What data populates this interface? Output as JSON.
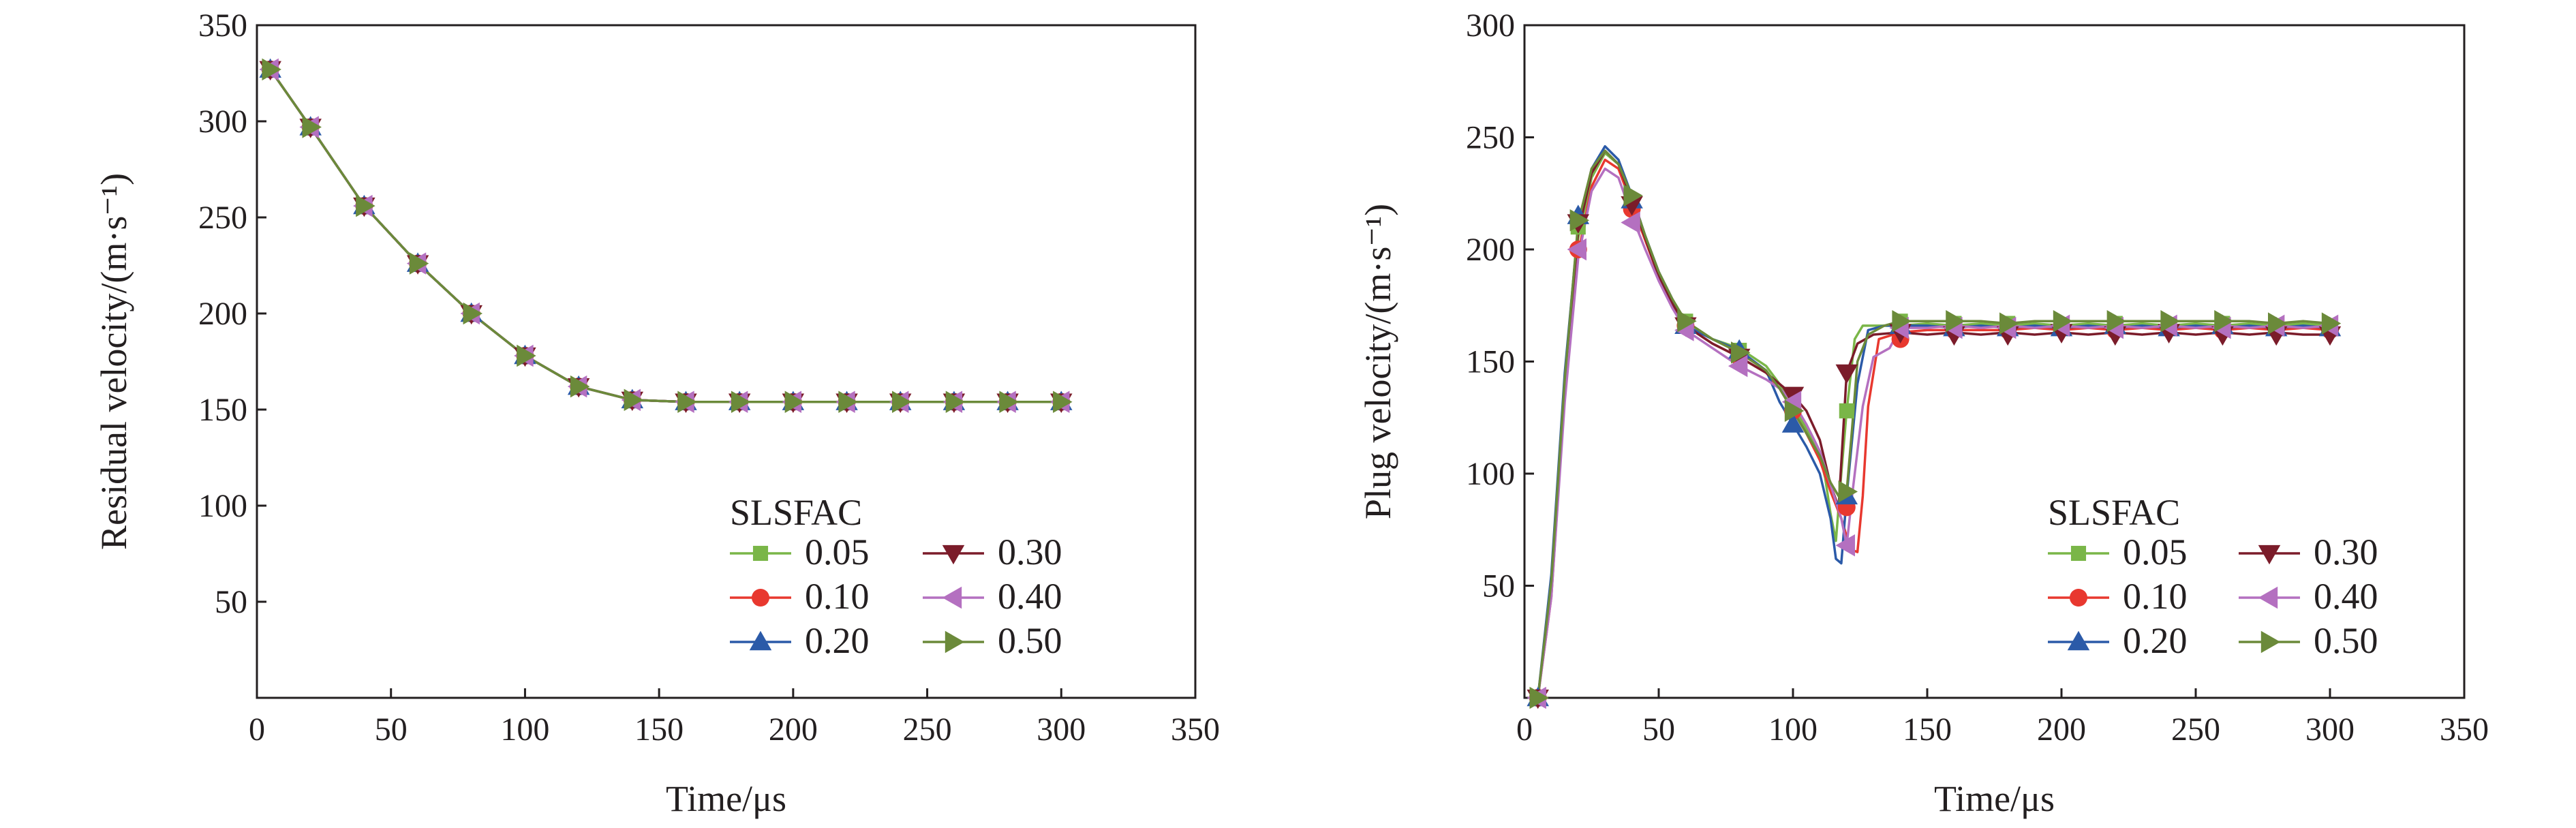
{
  "chart_data": [
    {
      "type": "line",
      "xlabel": "Time/μs",
      "ylabel": "Residual velocity/(m·s⁻¹)",
      "xlim": [
        0,
        350
      ],
      "ylim": [
        0,
        350
      ],
      "xticks": [
        0,
        50,
        100,
        150,
        200,
        250,
        300,
        350
      ],
      "yticks": [
        50,
        100,
        150,
        200,
        250,
        300,
        350
      ],
      "grid": false,
      "legend": {
        "title": "SLSFAC",
        "placement": "bottom-right"
      },
      "series": [
        {
          "name": "0.05",
          "color": "#7ab648",
          "marker": "square",
          "x": [
            5,
            20,
            40,
            60,
            80,
            100,
            120,
            140,
            160,
            180,
            200,
            220,
            240,
            260,
            280,
            300
          ],
          "y": [
            327,
            297,
            256,
            226,
            200,
            178,
            162,
            155,
            154,
            154,
            154,
            154,
            154,
            154,
            154,
            154
          ]
        },
        {
          "name": "0.10",
          "color": "#e8382f",
          "marker": "circle",
          "x": [
            5,
            20,
            40,
            60,
            80,
            100,
            120,
            140,
            160,
            180,
            200,
            220,
            240,
            260,
            280,
            300
          ],
          "y": [
            327,
            297,
            256,
            226,
            200,
            178,
            162,
            155,
            154,
            154,
            154,
            154,
            154,
            154,
            154,
            154
          ]
        },
        {
          "name": "0.20",
          "color": "#2b5aa8",
          "marker": "triangle-up",
          "x": [
            5,
            20,
            40,
            60,
            80,
            100,
            120,
            140,
            160,
            180,
            200,
            220,
            240,
            260,
            280,
            300
          ],
          "y": [
            327,
            297,
            256,
            226,
            200,
            178,
            162,
            155,
            154,
            154,
            154,
            154,
            154,
            154,
            154,
            154
          ]
        },
        {
          "name": "0.30",
          "color": "#7b1c2a",
          "marker": "triangle-down",
          "x": [
            5,
            20,
            40,
            60,
            80,
            100,
            120,
            140,
            160,
            180,
            200,
            220,
            240,
            260,
            280,
            300
          ],
          "y": [
            327,
            297,
            256,
            226,
            200,
            178,
            162,
            155,
            154,
            154,
            154,
            154,
            154,
            154,
            154,
            154
          ]
        },
        {
          "name": "0.40",
          "color": "#b470c0",
          "marker": "triangle-left",
          "x": [
            5,
            20,
            40,
            60,
            80,
            100,
            120,
            140,
            160,
            180,
            200,
            220,
            240,
            260,
            280,
            300
          ],
          "y": [
            327,
            297,
            256,
            226,
            200,
            178,
            162,
            155,
            154,
            154,
            154,
            154,
            154,
            154,
            154,
            154
          ]
        },
        {
          "name": "0.50",
          "color": "#6b8a3a",
          "marker": "triangle-right",
          "x": [
            5,
            20,
            40,
            60,
            80,
            100,
            120,
            140,
            160,
            180,
            200,
            220,
            240,
            260,
            280,
            300
          ],
          "y": [
            327,
            297,
            256,
            226,
            200,
            178,
            162,
            155,
            154,
            154,
            154,
            154,
            154,
            154,
            154,
            154
          ]
        }
      ]
    },
    {
      "type": "line",
      "xlabel": "Time/μs",
      "ylabel": "Plug velocity/(m·s⁻¹)",
      "xlim": [
        0,
        350
      ],
      "ylim": [
        0,
        300
      ],
      "xticks": [
        0,
        50,
        100,
        150,
        200,
        250,
        300,
        350
      ],
      "yticks": [
        50,
        100,
        150,
        200,
        250,
        300
      ],
      "grid": false,
      "legend": {
        "title": "SLSFAC",
        "placement": "bottom-right"
      },
      "series": [
        {
          "name": "0.05",
          "color": "#7ab648",
          "marker": "square",
          "x": [
            5,
            10,
            15,
            20,
            25,
            30,
            35,
            40,
            45,
            50,
            55,
            60,
            70,
            80,
            90,
            95,
            100,
            105,
            110,
            112,
            114,
            116,
            118,
            120,
            123,
            126,
            130,
            140,
            150,
            160,
            170,
            180,
            190,
            200,
            210,
            220,
            230,
            240,
            250,
            260,
            270,
            280,
            290,
            300
          ],
          "y": [
            0,
            50,
            140,
            205,
            232,
            243,
            238,
            222,
            205,
            190,
            178,
            168,
            160,
            156,
            148,
            140,
            130,
            120,
            108,
            98,
            82,
            70,
            100,
            128,
            160,
            166,
            166,
            166,
            167,
            166,
            167,
            166,
            167,
            166,
            167,
            166,
            167,
            166,
            167,
            166,
            167,
            166,
            167,
            166
          ],
          "marker_x": [
            5,
            20,
            40,
            60,
            80,
            100,
            120,
            140,
            160,
            180,
            200,
            220,
            240,
            260,
            280,
            300
          ],
          "marker_y": [
            0,
            210,
            220,
            168,
            155,
            130,
            128,
            168,
            167,
            167,
            166,
            167,
            166,
            167,
            166,
            166
          ]
        },
        {
          "name": "0.10",
          "color": "#e8382f",
          "marker": "circle",
          "x": [
            5,
            10,
            15,
            20,
            25,
            30,
            35,
            40,
            45,
            50,
            55,
            60,
            70,
            80,
            90,
            95,
            100,
            105,
            110,
            114,
            118,
            120,
            122,
            124,
            126,
            128,
            132,
            140,
            150,
            160,
            170,
            180,
            190,
            200,
            210,
            220,
            230,
            240,
            250,
            260,
            270,
            280,
            290,
            300
          ],
          "y": [
            0,
            45,
            135,
            198,
            228,
            240,
            236,
            220,
            204,
            188,
            176,
            166,
            158,
            152,
            145,
            138,
            128,
            118,
            106,
            92,
            80,
            72,
            66,
            65,
            90,
            130,
            160,
            163,
            164,
            164,
            164,
            164,
            165,
            164,
            165,
            164,
            165,
            164,
            165,
            164,
            165,
            164,
            165,
            164
          ],
          "marker_x": [
            5,
            20,
            40,
            60,
            80,
            100,
            120,
            140,
            160,
            180,
            200,
            220,
            240,
            260,
            280,
            300
          ],
          "marker_y": [
            0,
            200,
            218,
            166,
            152,
            128,
            85,
            160,
            164,
            164,
            165,
            164,
            165,
            164,
            165,
            164
          ]
        },
        {
          "name": "0.20",
          "color": "#2b5aa8",
          "marker": "triangle-up",
          "x": [
            5,
            10,
            15,
            20,
            25,
            30,
            35,
            40,
            45,
            50,
            55,
            60,
            70,
            80,
            90,
            95,
            100,
            105,
            110,
            114,
            116,
            118,
            120,
            124,
            128,
            134,
            140,
            150,
            160,
            170,
            180,
            190,
            200,
            210,
            220,
            230,
            240,
            250,
            260,
            270,
            280,
            290,
            300
          ],
          "y": [
            0,
            55,
            145,
            210,
            236,
            246,
            240,
            224,
            206,
            190,
            178,
            166,
            160,
            155,
            146,
            132,
            122,
            112,
            100,
            80,
            62,
            60,
            90,
            140,
            164,
            166,
            166,
            166,
            165,
            166,
            165,
            166,
            165,
            166,
            165,
            166,
            165,
            166,
            165,
            166,
            165,
            166,
            165
          ],
          "marker_x": [
            5,
            20,
            40,
            60,
            80,
            100,
            120,
            140,
            160,
            180,
            200,
            220,
            240,
            260,
            280,
            300
          ],
          "marker_y": [
            0,
            215,
            222,
            166,
            155,
            122,
            90,
            166,
            165,
            165,
            165,
            166,
            165,
            166,
            165,
            165
          ]
        },
        {
          "name": "0.30",
          "color": "#7b1c2a",
          "marker": "triangle-down",
          "x": [
            5,
            10,
            15,
            20,
            25,
            30,
            35,
            40,
            45,
            50,
            55,
            60,
            70,
            80,
            90,
            95,
            100,
            105,
            110,
            114,
            117,
            120,
            124,
            130,
            140,
            150,
            160,
            170,
            180,
            190,
            200,
            210,
            220,
            230,
            240,
            250,
            260,
            270,
            280,
            290,
            300
          ],
          "y": [
            0,
            50,
            140,
            208,
            234,
            244,
            238,
            222,
            205,
            188,
            176,
            166,
            158,
            152,
            145,
            140,
            135,
            128,
            115,
            95,
            85,
            145,
            158,
            162,
            163,
            162,
            163,
            162,
            163,
            162,
            163,
            162,
            163,
            162,
            163,
            162,
            163,
            162,
            163,
            162,
            162
          ],
          "marker_x": [
            5,
            20,
            40,
            60,
            80,
            100,
            120,
            140,
            160,
            180,
            200,
            220,
            240,
            260,
            280,
            300
          ],
          "marker_y": [
            0,
            212,
            220,
            166,
            152,
            135,
            145,
            163,
            162,
            162,
            163,
            162,
            163,
            162,
            162,
            162
          ]
        },
        {
          "name": "0.40",
          "color": "#b470c0",
          "marker": "triangle-left",
          "x": [
            5,
            10,
            15,
            20,
            25,
            30,
            35,
            40,
            45,
            50,
            55,
            60,
            70,
            80,
            90,
            95,
            100,
            105,
            110,
            114,
            118,
            120,
            122,
            126,
            130,
            136,
            140,
            150,
            160,
            170,
            180,
            190,
            200,
            210,
            220,
            230,
            240,
            250,
            260,
            270,
            280,
            290,
            300
          ],
          "y": [
            0,
            45,
            132,
            196,
            226,
            236,
            232,
            215,
            200,
            186,
            174,
            164,
            156,
            148,
            142,
            138,
            132,
            122,
            110,
            95,
            80,
            68,
            90,
            130,
            152,
            156,
            165,
            165,
            166,
            165,
            166,
            165,
            166,
            165,
            166,
            165,
            166,
            165,
            166,
            165,
            166,
            165,
            166
          ],
          "marker_x": [
            5,
            20,
            40,
            60,
            80,
            100,
            120,
            140,
            160,
            180,
            200,
            220,
            240,
            260,
            280,
            300
          ],
          "marker_y": [
            0,
            200,
            212,
            164,
            148,
            132,
            68,
            165,
            165,
            165,
            166,
            165,
            166,
            165,
            166,
            166
          ]
        },
        {
          "name": "0.50",
          "color": "#6b8a3a",
          "marker": "triangle-right",
          "x": [
            5,
            10,
            15,
            20,
            25,
            30,
            35,
            40,
            45,
            50,
            55,
            60,
            70,
            80,
            90,
            95,
            100,
            105,
            110,
            114,
            118,
            120,
            122,
            124,
            128,
            134,
            140,
            150,
            160,
            170,
            180,
            190,
            200,
            210,
            220,
            230,
            240,
            250,
            260,
            270,
            280,
            290,
            300
          ],
          "y": [
            0,
            52,
            142,
            212,
            236,
            244,
            238,
            224,
            206,
            190,
            178,
            168,
            160,
            154,
            146,
            138,
            128,
            118,
            108,
            96,
            88,
            92,
            120,
            150,
            162,
            166,
            168,
            168,
            168,
            168,
            167,
            168,
            168,
            168,
            168,
            168,
            168,
            168,
            168,
            168,
            167,
            168,
            167
          ],
          "marker_x": [
            5,
            20,
            40,
            60,
            80,
            100,
            120,
            140,
            160,
            180,
            200,
            220,
            240,
            260,
            280,
            300
          ],
          "marker_y": [
            0,
            213,
            224,
            168,
            154,
            128,
            92,
            168,
            168,
            167,
            168,
            168,
            168,
            168,
            167,
            167
          ]
        }
      ]
    }
  ]
}
